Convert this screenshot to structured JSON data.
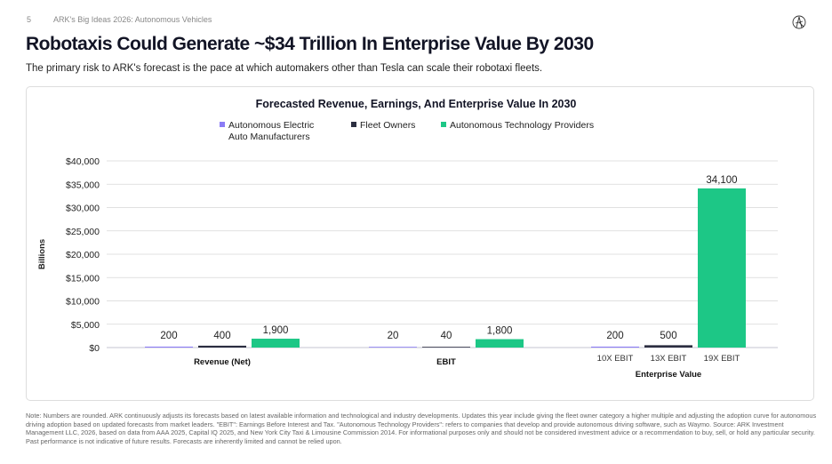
{
  "header": {
    "page_number": "5",
    "breadcrumb": "ARK's Big Ideas 2026: Autonomous Vehicles",
    "logo": "ARK"
  },
  "title": "Robotaxis Could Generate ~$34 Trillion In Enterprise Value By 2030",
  "subtitle": "The primary risk to ARK's forecast is the pace at which automakers other than Tesla can scale their robotaxi fleets.",
  "chart_data": {
    "type": "bar",
    "title": "Forecasted Revenue, Earnings, And Enterprise Value In 2030",
    "ylabel": "Billions",
    "ylim": [
      0,
      40000
    ],
    "yticks": [
      "$0",
      "$5,000",
      "$10,000",
      "$15,000",
      "$20,000",
      "$25,000",
      "$30,000",
      "$35,000",
      "$40,000"
    ],
    "grid": true,
    "legend_placement": "top",
    "legend": [
      {
        "name": "Autonomous Electric Auto Manufacturers",
        "line1": "Autonomous Electric",
        "line2": "Auto Manufacturers",
        "color": "#8b7cf6"
      },
      {
        "name": "Fleet Owners",
        "color": "#2b2e40"
      },
      {
        "name": "Autonomous Technology Providers",
        "color": "#1dc786"
      }
    ],
    "groups": [
      {
        "label": "Revenue (Net)",
        "bars": [
          {
            "series": 0,
            "value": 200,
            "label": "200"
          },
          {
            "series": 1,
            "value": 400,
            "label": "400"
          },
          {
            "series": 2,
            "value": 1900,
            "label": "1,900"
          }
        ]
      },
      {
        "label": "EBIT",
        "bars": [
          {
            "series": 0,
            "value": 20,
            "label": "20"
          },
          {
            "series": 1,
            "value": 40,
            "label": "40"
          },
          {
            "series": 2,
            "value": 1800,
            "label": "1,800"
          }
        ]
      },
      {
        "label": "Enterprise Value",
        "bars": [
          {
            "series": 0,
            "value": 200,
            "label": "200",
            "sublabel": "10X EBIT"
          },
          {
            "series": 1,
            "value": 500,
            "label": "500",
            "sublabel": "13X EBIT"
          },
          {
            "series": 2,
            "value": 34100,
            "label": "34,100",
            "sublabel": "19X EBIT"
          }
        ]
      }
    ]
  },
  "note": "Note: Numbers are rounded. ARK continuously adjusts its forecasts based on latest available information and technological and industry developments. Updates this year include giving the fleet owner category a higher multiple and adjusting the adoption curve for autonomous driving adoption based on updated forecasts from market leaders. \"EBIT\": Earnings Before Interest and Tax. \"Autonomous Technology Providers\": refers to companies that develop and provide autonomous driving software, such as Waymo. Source: ARK Investment Management LLC, 2026, based on data from AAA 2025, Capital IQ 2025, and New York City Taxi & Limousine Commission 2014. For informational purposes only and should not be considered investment advice or a recommendation to buy, sell, or hold any particular security. Past performance is not indicative of future results. Forecasts are inherently limited and cannot be relied upon."
}
